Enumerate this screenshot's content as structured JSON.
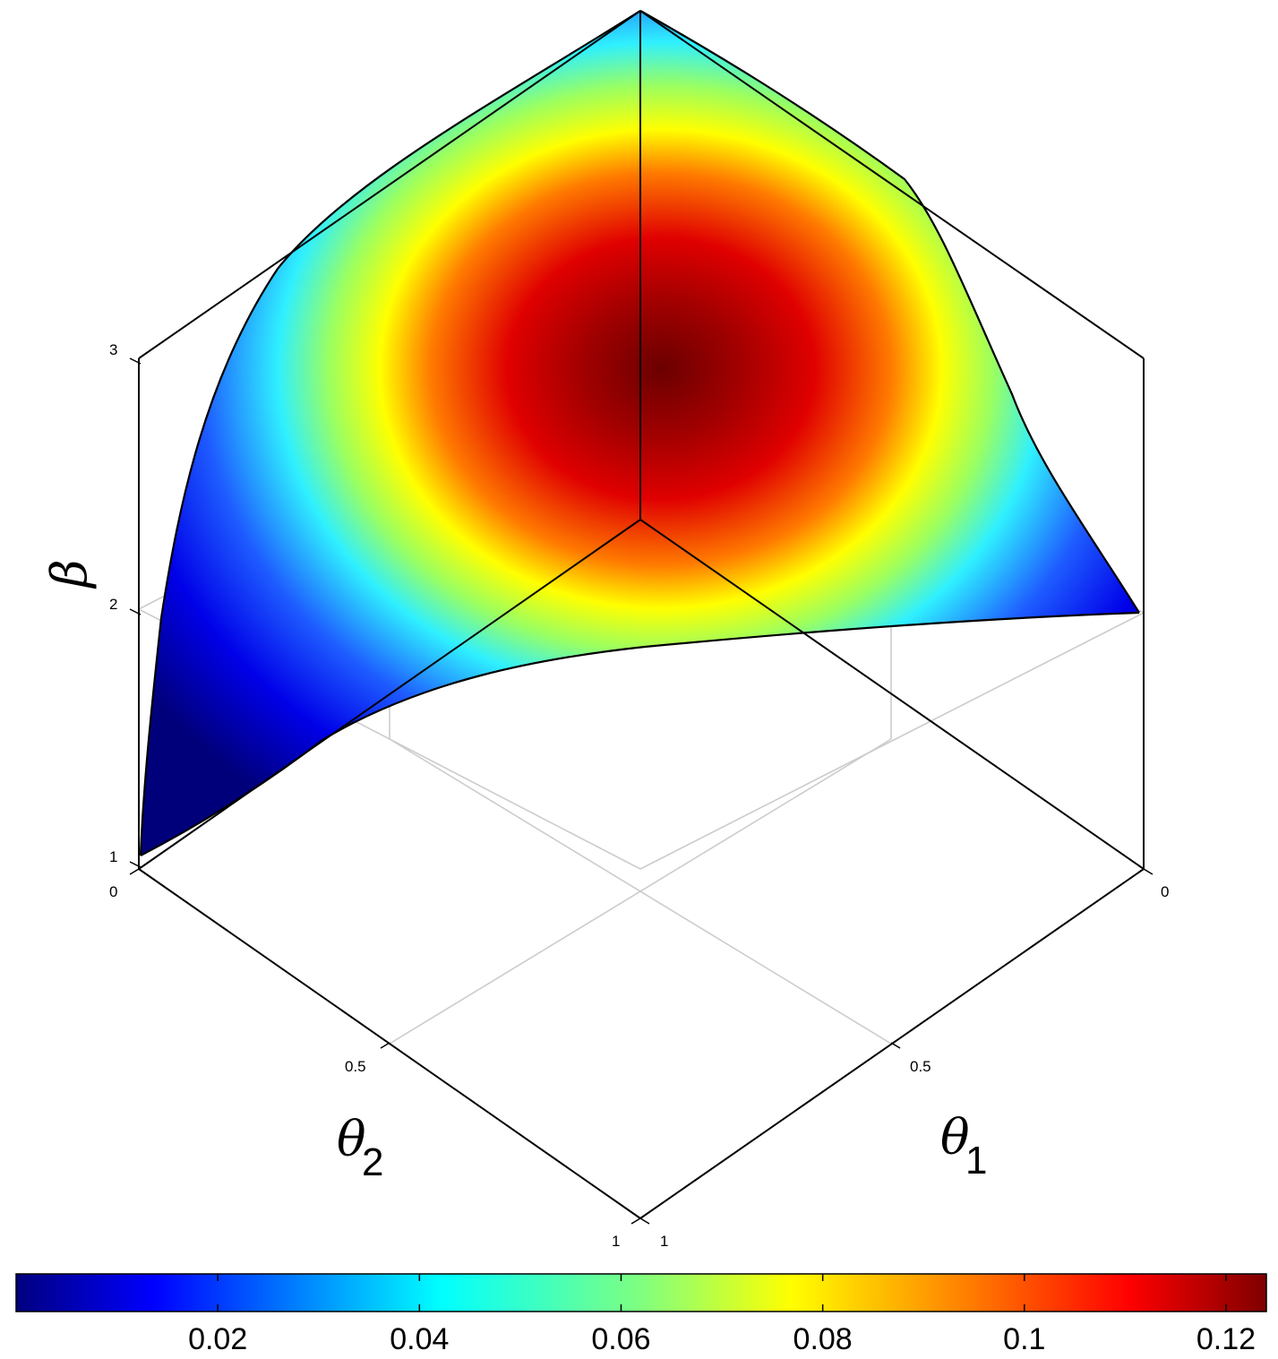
{
  "chart_data": {
    "type": "surface3d",
    "title": "",
    "axes": {
      "beta": {
        "label": "β",
        "ticks": [
          "1",
          "2",
          "3"
        ],
        "range": [
          1,
          3
        ]
      },
      "theta1": {
        "label": "θ",
        "subscript": "1",
        "ticks": [
          "0",
          "0.5",
          "1"
        ],
        "range": [
          0,
          1
        ]
      },
      "theta2": {
        "label": "θ",
        "subscript": "2",
        "ticks": [
          "0",
          "0.5",
          "1"
        ],
        "range": [
          0,
          1
        ]
      }
    },
    "surface": {
      "description_values": "beta on the surface rises from 1 at theta1=0,theta2=1 and 2 at theta1=1,theta2=0 up to 3 at the apex; colour gives the plotted quantity",
      "apex_beta": 3,
      "corner_values": [
        {
          "theta1": 0,
          "theta2": 0,
          "beta": 3
        },
        {
          "theta1": 0,
          "theta2": 1,
          "beta": 1
        },
        {
          "theta1": 1,
          "theta2": 0,
          "beta": 2
        }
      ],
      "color_range": [
        0,
        0.124
      ],
      "peak_value": 0.124
    },
    "colorbar": {
      "colormap": "jet",
      "range": [
        0,
        0.124
      ],
      "ticks": [
        0.02,
        0.04,
        0.06,
        0.08,
        0.1,
        0.12
      ],
      "tick_labels": [
        "0.02",
        "0.04",
        "0.06",
        "0.08",
        "0.1",
        "0.12"
      ],
      "placement": "bottom"
    },
    "grid": true
  }
}
